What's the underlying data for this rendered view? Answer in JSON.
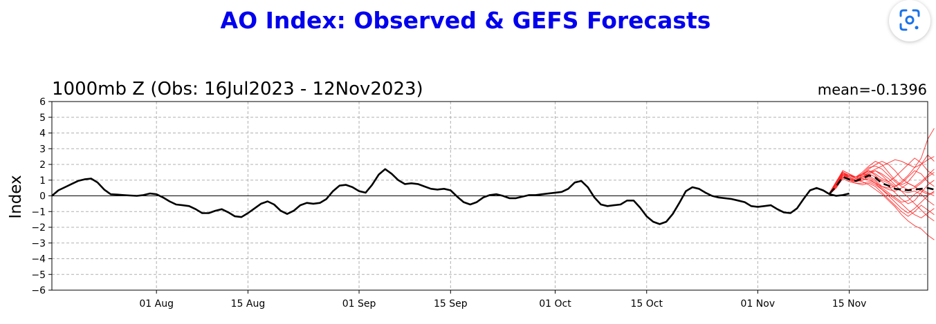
{
  "page_title": "AO Index: Observed & GEFS Forecasts",
  "colors": {
    "title": "#0000ee",
    "observed": "#000000",
    "ensemble": "#ff2020",
    "grid": "#b0b0b0",
    "lens_icon": "#1a73e8"
  },
  "lens_button": {
    "icon": "google-lens-icon"
  },
  "chart_data": {
    "type": "line",
    "title": "1000mb Z (Obs: 16Jul2023 - 12Nov2023)",
    "annotation": "mean=-0.1396",
    "ylabel": "Index",
    "xlabel": "",
    "ylim": [
      -6,
      6
    ],
    "yticks": [
      -6,
      -5,
      -4,
      -3,
      -2,
      -1,
      0,
      1,
      2,
      3,
      4,
      5,
      6
    ],
    "yticklabels": [
      "−6",
      "−5",
      "−4",
      "−3",
      "−2",
      "−1",
      "0",
      "1",
      "2",
      "3",
      "4",
      "5",
      "6"
    ],
    "xlim": [
      "2023-07-16",
      "2023-11-27"
    ],
    "xticks": [
      "2023-08-01",
      "2023-08-15",
      "2023-09-01",
      "2023-09-15",
      "2023-10-01",
      "2023-10-15",
      "2023-11-01",
      "2023-11-15"
    ],
    "xticklabels": [
      "01 Aug",
      "15 Aug",
      "01 Sep",
      "15 Sep",
      "01 Oct",
      "15 Oct",
      "01 Nov",
      "15 Nov"
    ],
    "grid": true,
    "series": [
      {
        "style": "solid",
        "start": "2023-07-16",
        "values": [
          0.0,
          0.35,
          0.55,
          0.75,
          0.95,
          1.05,
          1.1,
          0.85,
          0.4,
          0.1,
          0.08,
          0.05,
          0.02,
          0.0,
          0.05,
          0.15,
          0.1,
          -0.1,
          -0.35,
          -0.55,
          -0.6,
          -0.65,
          -0.85,
          -1.1,
          -1.1,
          -0.95,
          -0.85,
          -1.05,
          -1.3,
          -1.35,
          -1.1,
          -0.8,
          -0.5,
          -0.35,
          -0.55,
          -0.95,
          -1.15,
          -0.95,
          -0.6,
          -0.45,
          -0.5,
          -0.45,
          -0.2,
          0.3,
          0.65,
          0.7,
          0.55,
          0.3,
          0.2,
          0.7,
          1.35,
          1.7,
          1.4,
          1.0,
          0.75,
          0.8,
          0.75,
          0.6,
          0.45,
          0.4,
          0.45,
          0.35,
          -0.05,
          -0.4,
          -0.55,
          -0.4,
          -0.1,
          0.05,
          0.1,
          0.0,
          -0.15,
          -0.15,
          -0.05,
          0.05,
          0.05,
          0.1,
          0.15,
          0.2,
          0.25,
          0.45,
          0.85,
          0.95,
          0.55,
          -0.1,
          -0.55,
          -0.65,
          -0.6,
          -0.55,
          -0.3,
          -0.3,
          -0.75,
          -1.3,
          -1.65,
          -1.8,
          -1.65,
          -1.15,
          -0.45,
          0.3,
          0.55,
          0.45,
          0.2,
          0.0,
          -0.1,
          -0.15,
          -0.2,
          -0.3,
          -0.4,
          -0.65,
          -0.7,
          -0.65,
          -0.6,
          -0.85,
          -1.05,
          -1.1,
          -0.8,
          -0.2,
          0.35,
          0.5,
          0.35,
          0.1,
          0.0,
          0.05,
          0.15
        ]
      },
      {
        "style": "dashed",
        "start": "2023-11-12",
        "values": [
          0.15,
          0.6,
          1.2,
          1.05,
          0.95,
          1.1,
          1.3,
          1.15,
          0.8,
          0.65,
          0.45,
          0.4,
          0.35,
          0.4,
          0.45,
          0.5,
          0.4
        ]
      }
    ],
    "ensemble": {
      "start": "2023-11-12",
      "members": [
        [
          0.2,
          0.8,
          1.5,
          1.2,
          1.0,
          1.3,
          1.6,
          1.4,
          1.1,
          0.9,
          1.2,
          1.6,
          2.0,
          2.4,
          2.1,
          1.6,
          1.3
        ],
        [
          0.1,
          0.6,
          1.3,
          1.0,
          0.9,
          1.0,
          1.2,
          0.9,
          0.5,
          0.2,
          -0.1,
          -0.4,
          -0.3,
          0.1,
          0.4,
          0.2,
          0.0
        ],
        [
          0.2,
          0.9,
          1.6,
          1.4,
          1.1,
          1.4,
          1.8,
          1.9,
          1.7,
          1.3,
          0.9,
          0.6,
          0.4,
          0.5,
          0.8,
          1.2,
          1.5
        ],
        [
          0.1,
          0.5,
          1.1,
          0.9,
          0.8,
          0.7,
          0.8,
          0.6,
          0.2,
          -0.2,
          -0.6,
          -1.0,
          -1.3,
          -1.0,
          -0.6,
          -0.9,
          -1.2
        ],
        [
          0.2,
          0.7,
          1.4,
          1.3,
          1.2,
          1.5,
          1.9,
          2.2,
          2.0,
          1.5,
          1.0,
          0.7,
          0.9,
          1.4,
          2.0,
          2.6,
          2.2
        ],
        [
          0.1,
          0.6,
          1.2,
          1.1,
          1.0,
          0.9,
          0.7,
          0.4,
          0.1,
          -0.3,
          -0.7,
          -1.2,
          -1.6,
          -1.9,
          -2.1,
          -2.5,
          -2.8
        ],
        [
          0.2,
          0.8,
          1.5,
          1.3,
          1.1,
          1.2,
          1.4,
          1.2,
          1.0,
          0.8,
          0.5,
          0.3,
          0.2,
          0.3,
          0.1,
          -0.3,
          -0.6
        ],
        [
          0.2,
          0.7,
          1.3,
          1.2,
          1.0,
          1.1,
          1.0,
          0.8,
          0.6,
          0.5,
          0.6,
          0.9,
          1.3,
          1.8,
          2.4,
          3.6,
          4.3
        ],
        [
          0.1,
          0.6,
          1.4,
          1.1,
          0.9,
          1.2,
          1.5,
          1.6,
          1.4,
          1.1,
          0.7,
          0.3,
          -0.1,
          -0.5,
          -0.9,
          -1.3,
          -1.6
        ],
        [
          0.2,
          0.8,
          1.6,
          1.4,
          1.2,
          1.3,
          1.7,
          2.0,
          2.2,
          2.0,
          1.6,
          1.1,
          0.8,
          0.6,
          0.9,
          1.3,
          1.7
        ],
        [
          0.1,
          0.5,
          1.2,
          1.0,
          0.8,
          0.8,
          0.9,
          0.7,
          0.4,
          0.0,
          -0.4,
          -0.8,
          -1.1,
          -0.8,
          -0.4,
          0.0,
          0.3
        ],
        [
          0.2,
          0.9,
          1.5,
          1.3,
          1.1,
          1.4,
          1.6,
          1.3,
          0.9,
          0.6,
          0.2,
          -0.2,
          -0.5,
          -0.3,
          0.2,
          0.7,
          1.0
        ],
        [
          0.2,
          0.7,
          1.4,
          1.2,
          1.0,
          1.2,
          1.5,
          1.7,
          1.9,
          2.1,
          2.3,
          2.2,
          2.0,
          1.8,
          2.0,
          2.3,
          2.5
        ],
        [
          0.1,
          0.6,
          1.3,
          1.1,
          0.9,
          1.0,
          1.1,
          0.8,
          0.4,
          0.1,
          -0.2,
          -0.5,
          -0.9,
          -1.2,
          -1.4,
          -1.1,
          -0.8
        ],
        [
          0.2,
          0.8,
          1.5,
          1.3,
          1.2,
          1.4,
          1.3,
          1.0,
          0.6,
          0.4,
          0.3,
          0.5,
          0.8,
          0.6,
          0.3,
          0.1,
          0.2
        ],
        [
          0.1,
          0.7,
          1.4,
          1.2,
          1.0,
          1.1,
          1.4,
          1.6,
          1.3,
          0.9,
          0.6,
          0.8,
          1.2,
          1.6,
          1.4,
          0.9,
          0.6
        ]
      ]
    }
  }
}
